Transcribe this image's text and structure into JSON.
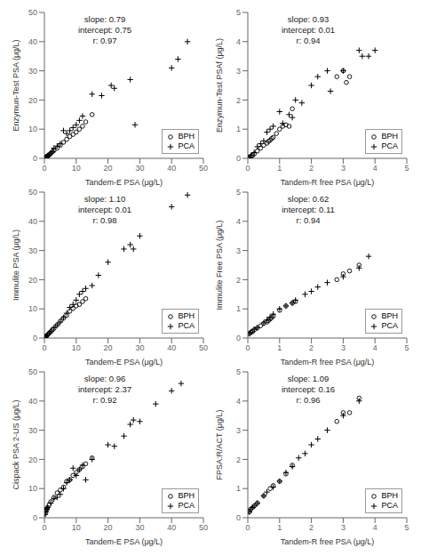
{
  "chart_data": [
    {
      "type": "scatter",
      "x_label": "Tandem-E PSA (μg/L)",
      "y_label": "Enzymun-Test PSA (μg/L)",
      "xlim": [
        0,
        50
      ],
      "ylim": [
        0,
        50
      ],
      "xticks": [
        0,
        10,
        20,
        30,
        40,
        50
      ],
      "yticks": [
        0,
        10,
        20,
        30,
        40,
        50
      ],
      "grid": false,
      "legend": "lower right",
      "annotations": [
        "slope: 0.79",
        "intercept: 0.75",
        "r: 0.97"
      ],
      "series": [
        {
          "name": "BPH",
          "marker": "circle",
          "color": "#000000",
          "x": [
            0.3,
            0.4,
            0.5,
            0.6,
            0.8,
            1.0,
            1.2,
            1.5,
            2.0,
            2.5,
            3.0,
            4.0,
            5.0,
            6.0,
            7.0,
            8.0,
            9.0,
            10.0,
            11.0,
            12.0,
            13.0,
            15.0
          ],
          "values": [
            0.2,
            0.3,
            0.4,
            0.5,
            0.6,
            0.8,
            0.9,
            1.2,
            1.7,
            2.2,
            2.7,
            3.5,
            4.5,
            5.5,
            6.5,
            7.5,
            8.2,
            9.0,
            10.0,
            11.0,
            12.5,
            15.0
          ]
        },
        {
          "name": "PCA",
          "marker": "plus",
          "color": "#000000",
          "x": [
            0.2,
            0.3,
            0.5,
            0.7,
            1.0,
            1.5,
            2.0,
            2.5,
            3.0,
            4.0,
            5.0,
            6.0,
            7.0,
            8.0,
            9.0,
            10.0,
            11.0,
            12.0,
            15.0,
            18.0,
            21.0,
            22.0,
            27.0,
            28.5,
            40.0,
            42.0,
            45.0
          ],
          "values": [
            0.1,
            0.2,
            0.4,
            0.6,
            0.9,
            1.2,
            1.8,
            2.3,
            3.5,
            4.2,
            5.0,
            9.5,
            8.5,
            9.5,
            10.5,
            11.5,
            13.0,
            14.5,
            22.0,
            21.5,
            25.0,
            24.0,
            27.0,
            11.5,
            31.0,
            34.0,
            40.0
          ]
        }
      ]
    },
    {
      "type": "scatter",
      "x_label": "Tandem-R free PSA (μg/L)",
      "y_label": "Enzymun-Test PSAf (μg/L)",
      "xlim": [
        0,
        5
      ],
      "ylim": [
        0,
        5
      ],
      "xticks": [
        0,
        1,
        2,
        3,
        4,
        5
      ],
      "yticks": [
        0,
        1,
        2,
        3,
        4,
        5
      ],
      "grid": false,
      "legend": "lower right",
      "annotations": [
        "slope: 0.93",
        "intercept: 0.01",
        "r: 0.94"
      ],
      "series": [
        {
          "name": "BPH",
          "marker": "circle",
          "color": "#000000",
          "x": [
            0.05,
            0.1,
            0.15,
            0.2,
            0.3,
            0.4,
            0.5,
            0.6,
            0.65,
            0.7,
            0.75,
            0.8,
            0.9,
            1.0,
            1.1,
            1.2,
            1.3,
            1.4,
            2.8,
            3.0,
            3.1,
            3.2
          ],
          "values": [
            0.03,
            0.07,
            0.1,
            0.15,
            0.25,
            0.35,
            0.45,
            0.52,
            0.58,
            0.62,
            0.68,
            0.72,
            0.85,
            1.0,
            1.1,
            1.15,
            1.1,
            1.7,
            2.8,
            3.0,
            2.6,
            2.8
          ]
        },
        {
          "name": "PCA",
          "marker": "plus",
          "color": "#000000",
          "x": [
            0.05,
            0.1,
            0.2,
            0.3,
            0.4,
            0.5,
            0.6,
            0.7,
            0.8,
            1.0,
            1.1,
            1.3,
            1.4,
            1.5,
            1.7,
            2.0,
            2.2,
            2.5,
            2.6,
            3.0,
            3.5,
            3.6,
            3.8,
            4.0
          ],
          "values": [
            0.05,
            0.1,
            0.2,
            0.4,
            0.5,
            0.6,
            0.9,
            1.0,
            1.1,
            1.6,
            1.2,
            1.5,
            1.4,
            2.0,
            1.9,
            2.5,
            2.8,
            3.0,
            2.3,
            3.0,
            3.7,
            3.5,
            3.5,
            3.7
          ]
        }
      ]
    },
    {
      "type": "scatter",
      "x_label": "Tandem-E PSA (μg/L)",
      "y_label": "Immulite PSA (μg/L)",
      "xlim": [
        0,
        50
      ],
      "ylim": [
        0,
        50
      ],
      "xticks": [
        0,
        10,
        20,
        30,
        40,
        50
      ],
      "yticks": [
        0,
        10,
        20,
        30,
        40,
        50
      ],
      "grid": false,
      "legend": "lower right",
      "annotations": [
        "slope: 1.10",
        "intercept: 0.01",
        "r: 0.98"
      ],
      "series": [
        {
          "name": "BPH",
          "marker": "circle",
          "color": "#000000",
          "x": [
            0.3,
            0.5,
            0.7,
            1.0,
            1.5,
            2.0,
            2.5,
            3.0,
            4.0,
            5.0,
            6.0,
            7.0,
            8.0,
            9.0,
            10.0,
            11.0,
            12.0,
            13.0
          ],
          "values": [
            0.3,
            0.5,
            0.8,
            1.1,
            1.7,
            2.2,
            2.8,
            3.3,
            4.5,
            5.8,
            6.8,
            7.8,
            9.2,
            10.2,
            11.0,
            11.5,
            12.5,
            13.5
          ]
        },
        {
          "name": "PCA",
          "marker": "plus",
          "color": "#000000",
          "x": [
            0.3,
            0.5,
            0.8,
            1.0,
            1.5,
            2.0,
            3.0,
            4.0,
            5.0,
            6.0,
            7.0,
            8.0,
            9.0,
            10.0,
            11.0,
            12.0,
            13.0,
            15.0,
            17.0,
            20.0,
            25.0,
            27.0,
            28.0,
            30.0,
            40.0,
            45.0
          ],
          "values": [
            0.3,
            0.5,
            0.9,
            1.1,
            1.7,
            2.2,
            3.5,
            4.5,
            5.5,
            7.0,
            8.5,
            10.5,
            11.5,
            13.0,
            15.0,
            16.0,
            17.0,
            18.0,
            21.5,
            26.0,
            30.5,
            32.0,
            30.5,
            35.0,
            45.0,
            49.0
          ]
        }
      ]
    },
    {
      "type": "scatter",
      "x_label": "Tandem-R free PSA (μg/L)",
      "y_label": "Immulite Free PSA (μg/L)",
      "xlim": [
        0,
        5
      ],
      "ylim": [
        0,
        5
      ],
      "xticks": [
        0,
        1,
        2,
        3,
        4,
        5
      ],
      "yticks": [
        0,
        1,
        2,
        3,
        4,
        5
      ],
      "grid": false,
      "legend": "lower right",
      "annotations": [
        "slope: 0.62",
        "intercept: 0.11",
        "r: 0.94"
      ],
      "series": [
        {
          "name": "BPH",
          "marker": "circle",
          "color": "#000000",
          "x": [
            0.05,
            0.1,
            0.15,
            0.2,
            0.3,
            0.4,
            0.5,
            0.6,
            0.65,
            0.7,
            0.75,
            0.8,
            1.0,
            1.2,
            1.4,
            1.5,
            2.8,
            3.0,
            3.2,
            3.5
          ],
          "values": [
            0.15,
            0.2,
            0.22,
            0.28,
            0.35,
            0.42,
            0.5,
            0.55,
            0.6,
            0.65,
            0.7,
            0.75,
            0.95,
            1.1,
            1.2,
            1.25,
            2.0,
            2.2,
            2.3,
            2.5
          ]
        },
        {
          "name": "PCA",
          "marker": "plus",
          "color": "#000000",
          "x": [
            0.05,
            0.1,
            0.2,
            0.3,
            0.5,
            0.6,
            0.7,
            0.8,
            1.0,
            1.2,
            1.4,
            1.5,
            1.8,
            2.0,
            2.2,
            2.5,
            3.0,
            3.5,
            3.8
          ],
          "values": [
            0.15,
            0.2,
            0.3,
            0.35,
            0.52,
            0.62,
            0.72,
            0.82,
            1.0,
            1.1,
            1.2,
            1.3,
            1.5,
            1.6,
            1.75,
            1.9,
            2.1,
            2.4,
            2.8
          ]
        }
      ]
    },
    {
      "type": "scatter",
      "x_label": "Tandem-E PSA (μg/L)",
      "y_label": "Cispack PSA 2-US (μg/L)",
      "xlim": [
        0,
        50
      ],
      "ylim": [
        0,
        50
      ],
      "xticks": [
        0,
        10,
        20,
        30,
        40,
        50
      ],
      "yticks": [
        0,
        10,
        20,
        30,
        40,
        50
      ],
      "grid": false,
      "legend": "lower right",
      "annotations": [
        "slope: 0.96",
        "intercept: 2.37",
        "r: 0.92"
      ],
      "series": [
        {
          "name": "BPH",
          "marker": "circle",
          "color": "#000000",
          "x": [
            0.3,
            0.5,
            0.7,
            1.0,
            1.5,
            2.0,
            3.0,
            4.0,
            5.0,
            6.0,
            7.0,
            8.0,
            9.0,
            10.0,
            11.0,
            12.0,
            13.0,
            15.0
          ],
          "values": [
            1.5,
            2.5,
            3.0,
            3.5,
            4.5,
            5.5,
            7.0,
            8.5,
            9.5,
            10.5,
            12.5,
            13.0,
            14.5,
            15.5,
            16.5,
            17.5,
            18.5,
            20.5
          ]
        },
        {
          "name": "PCA",
          "marker": "plus",
          "color": "#000000",
          "x": [
            0.3,
            0.5,
            0.8,
            1.0,
            2.0,
            3.0,
            4.0,
            5.0,
            6.0,
            7.0,
            8.0,
            9.0,
            10.0,
            11.0,
            12.0,
            13.0,
            15.0,
            20.0,
            22.0,
            25.0,
            27.0,
            28.0,
            30.0,
            35.0,
            40.0,
            43.0
          ],
          "values": [
            1.2,
            2.0,
            2.8,
            3.5,
            5.0,
            6.5,
            7.0,
            8.0,
            10.0,
            12.0,
            13.0,
            17.0,
            14.5,
            16.5,
            18.0,
            13.0,
            20.0,
            25.0,
            24.5,
            28.0,
            32.0,
            33.5,
            33.0,
            39.0,
            43.5,
            46.0
          ]
        }
      ]
    },
    {
      "type": "scatter",
      "x_label": "Tandem-R free PSA (μg/L)",
      "y_label": "FPSA:R/ACT (μg/L)",
      "xlim": [
        0,
        5
      ],
      "ylim": [
        0,
        5
      ],
      "xticks": [
        0,
        1,
        2,
        3,
        4,
        5
      ],
      "yticks": [
        0,
        1,
        2,
        3,
        4,
        5
      ],
      "grid": false,
      "legend": "lower right",
      "annotations": [
        "slope: 1.09",
        "intercept: 0.16",
        "r: 0.96"
      ],
      "series": [
        {
          "name": "BPH",
          "marker": "circle",
          "color": "#000000",
          "x": [
            0.05,
            0.1,
            0.2,
            0.3,
            0.5,
            0.7,
            0.8,
            1.0,
            1.2,
            1.4,
            2.8,
            3.0,
            3.2,
            3.5
          ],
          "values": [
            0.2,
            0.3,
            0.4,
            0.5,
            0.75,
            1.0,
            1.1,
            1.25,
            1.5,
            1.8,
            3.3,
            3.6,
            3.6,
            4.1
          ]
        },
        {
          "name": "PCA",
          "marker": "plus",
          "color": "#000000",
          "x": [
            0.05,
            0.1,
            0.15,
            0.2,
            0.3,
            0.5,
            0.6,
            0.8,
            1.0,
            1.2,
            1.4,
            1.6,
            1.8,
            2.0,
            2.2,
            2.5,
            3.0,
            3.5
          ],
          "values": [
            0.2,
            0.3,
            0.35,
            0.4,
            0.5,
            0.75,
            0.88,
            1.05,
            1.25,
            1.55,
            1.75,
            2.05,
            2.2,
            2.5,
            2.7,
            3.0,
            3.5,
            4.0
          ]
        }
      ]
    }
  ]
}
